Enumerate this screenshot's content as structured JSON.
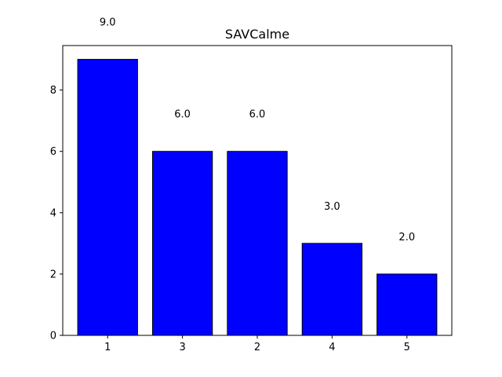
{
  "chart_data": {
    "type": "bar",
    "title": "SAVCalme",
    "xlabel": "",
    "ylabel": "",
    "categories": [
      "1",
      "3",
      "2",
      "4",
      "5"
    ],
    "values": [
      9.0,
      6.0,
      6.0,
      3.0,
      2.0
    ],
    "data_labels": [
      "9.0",
      "6.0",
      "6.0",
      "3.0",
      "2.0"
    ],
    "ylim": [
      0,
      9.45
    ],
    "yticks": [
      0,
      2,
      4,
      6,
      8
    ],
    "grid": false,
    "legend": "none",
    "bar_color": "#0000ff",
    "bar_edge_color": "#000000"
  }
}
